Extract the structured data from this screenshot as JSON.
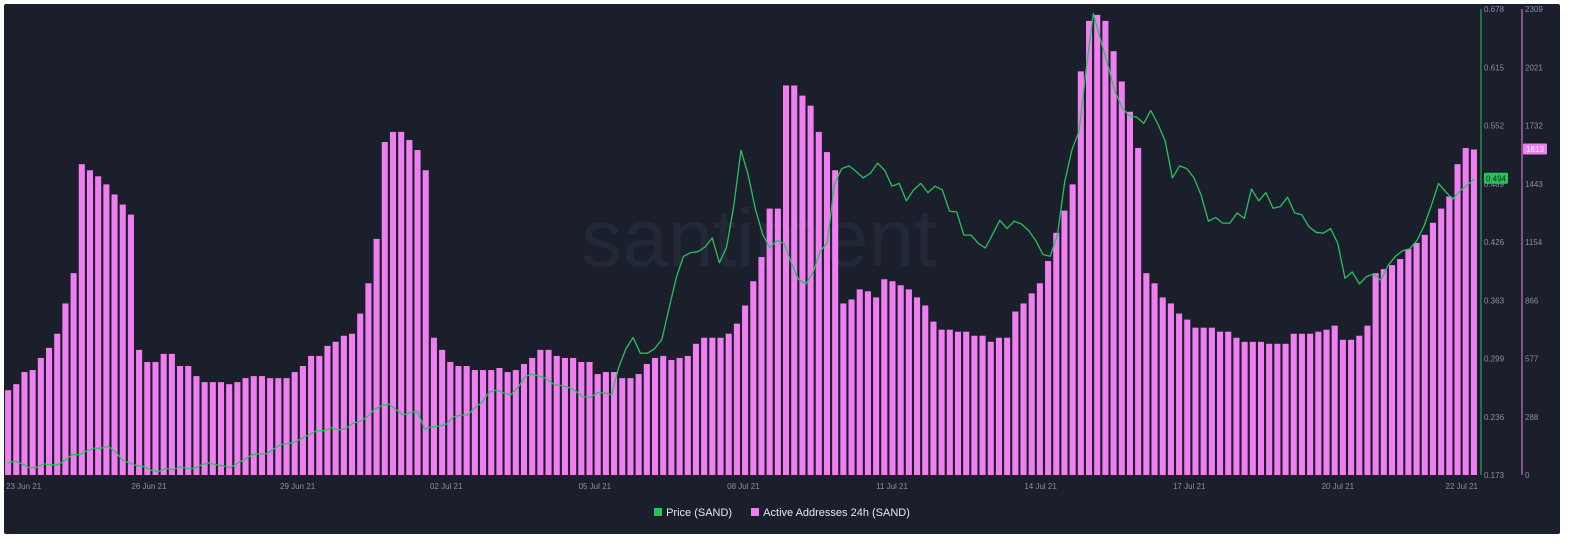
{
  "watermark": "santiment",
  "chart_data": {
    "type": "bar+line",
    "x_axis_labels": [
      "23 Jun 21",
      "26 Jun 21",
      "29 Jun 21",
      "02 Jul 21",
      "05 Jul 21",
      "08 Jul 21",
      "11 Jul 21",
      "14 Jul 21",
      "17 Jul 21",
      "20 Jul 21",
      "22 Jul 21"
    ],
    "legend": [
      {
        "name": "Price (SAND)",
        "color": "#27c25a"
      },
      {
        "name": "Active Addresses 24h (SAND)",
        "color": "#ef7ff0"
      }
    ],
    "price_axis": {
      "ticks": [
        "0.678",
        "0.615",
        "0.552",
        "0.489",
        "0.426",
        "0.363",
        "0.299",
        "0.236",
        "0.173"
      ],
      "range": [
        0.173,
        0.678
      ]
    },
    "addresses_axis": {
      "ticks": [
        "2309",
        "2021",
        "1732",
        "1443",
        "1154",
        "866",
        "577",
        "288",
        "0"
      ],
      "range": [
        0,
        2309
      ]
    },
    "current_price_label": "0.494",
    "current_addresses_label": "1613",
    "series": [
      {
        "name": "Active Addresses 24h (SAND)",
        "type": "bar",
        "color": "#ef7ff0",
        "values": [
          420,
          450,
          510,
          520,
          580,
          630,
          700,
          850,
          1000,
          1540,
          1510,
          1480,
          1440,
          1390,
          1340,
          1290,
          620,
          560,
          560,
          600,
          600,
          540,
          540,
          490,
          460,
          460,
          460,
          450,
          460,
          480,
          490,
          490,
          480,
          480,
          480,
          510,
          540,
          590,
          590,
          640,
          660,
          690,
          700,
          800,
          950,
          1170,
          1650,
          1700,
          1700,
          1660,
          1610,
          1510,
          680,
          620,
          560,
          540,
          540,
          520,
          520,
          520,
          530,
          510,
          520,
          550,
          580,
          620,
          620,
          590,
          580,
          580,
          560,
          560,
          500,
          510,
          510,
          480,
          480,
          500,
          550,
          580,
          590,
          570,
          580,
          590,
          650,
          680,
          680,
          680,
          700,
          750,
          840,
          960,
          1080,
          1320,
          1320,
          1930,
          1930,
          1880,
          1830,
          1700,
          1600,
          1510,
          850,
          870,
          920,
          910,
          880,
          970,
          960,
          940,
          920,
          880,
          840,
          760,
          720,
          720,
          710,
          710,
          690,
          690,
          660,
          680,
          680,
          810,
          850,
          900,
          950,
          1060,
          1200,
          1310,
          1440,
          2000,
          2250,
          2280,
          2250,
          2100,
          1950,
          1800,
          1620,
          1000,
          950,
          880,
          850,
          800,
          770,
          730,
          730,
          730,
          710,
          710,
          680,
          660,
          660,
          660,
          650,
          650,
          650,
          700,
          700,
          700,
          710,
          720,
          740,
          670,
          670,
          690,
          740,
          1000,
          1020,
          1040,
          1070,
          1120,
          1150,
          1190,
          1250,
          1320,
          1380,
          1540,
          1620,
          1613
        ]
      },
      {
        "name": "Price (SAND)",
        "type": "line",
        "color": "#27c25a",
        "values": [
          0.186,
          0.188,
          0.185,
          0.181,
          0.181,
          0.185,
          0.184,
          0.184,
          0.189,
          0.195,
          0.195,
          0.199,
          0.202,
          0.202,
          0.204,
          0.198,
          0.189,
          0.186,
          0.183,
          0.182,
          0.178,
          0.177,
          0.18,
          0.179,
          0.182,
          0.18,
          0.18,
          0.184,
          0.186,
          0.184,
          0.183,
          0.181,
          0.186,
          0.19,
          0.195,
          0.196,
          0.196,
          0.201,
          0.206,
          0.207,
          0.209,
          0.213,
          0.217,
          0.221,
          0.221,
          0.224,
          0.222,
          0.223,
          0.229,
          0.231,
          0.236,
          0.244,
          0.248,
          0.25,
          0.244,
          0.238,
          0.241,
          0.242,
          0.223,
          0.225,
          0.226,
          0.228,
          0.236,
          0.238,
          0.238,
          0.246,
          0.252,
          0.263,
          0.265,
          0.262,
          0.26,
          0.268,
          0.28,
          0.282,
          0.28,
          0.277,
          0.271,
          0.27,
          0.268,
          0.264,
          0.258,
          0.257,
          0.262,
          0.262,
          0.26,
          0.29,
          0.31,
          0.322,
          0.305,
          0.305,
          0.31,
          0.32,
          0.354,
          0.387,
          0.41,
          0.414,
          0.415,
          0.42,
          0.43,
          0.403,
          0.42,
          0.465,
          0.525,
          0.498,
          0.461,
          0.434,
          0.419,
          0.427,
          0.424,
          0.403,
          0.385,
          0.38,
          0.392,
          0.415,
          0.425,
          0.488,
          0.505,
          0.508,
          0.502,
          0.495,
          0.5,
          0.511,
          0.503,
          0.486,
          0.489,
          0.47,
          0.482,
          0.489,
          0.479,
          0.486,
          0.482,
          0.459,
          0.458,
          0.433,
          0.433,
          0.424,
          0.419,
          0.434,
          0.449,
          0.44,
          0.448,
          0.445,
          0.438,
          0.427,
          0.412,
          0.41,
          0.433,
          0.49,
          0.525,
          0.545,
          0.612,
          0.673,
          0.645,
          0.618,
          0.589,
          0.571,
          0.562,
          0.561,
          0.554,
          0.568,
          0.553,
          0.535,
          0.495,
          0.508,
          0.505,
          0.495,
          0.476,
          0.448,
          0.452,
          0.446,
          0.446,
          0.457,
          0.451,
          0.483,
          0.47,
          0.479,
          0.462,
          0.464,
          0.474,
          0.457,
          0.455,
          0.442,
          0.436,
          0.435,
          0.44,
          0.424,
          0.386,
          0.393,
          0.38,
          0.388,
          0.391,
          0.384,
          0.4,
          0.41,
          0.416,
          0.418,
          0.427,
          0.443,
          0.465,
          0.489,
          0.48,
          0.472,
          0.481,
          0.487,
          0.494
        ]
      }
    ],
    "grid": false,
    "legend_position": "bottom-center"
  }
}
